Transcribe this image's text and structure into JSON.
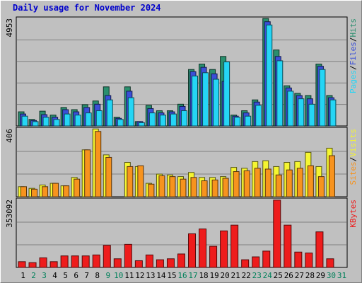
{
  "title": "Daily usage for November 2024",
  "colors": {
    "hits": "#2a8f6e",
    "files": "#3a4fd8",
    "pages": "#25d5f5",
    "visits": "#f5f531",
    "sites": "#f7931e",
    "kbytes": "#ee1c1c",
    "weekend_label": "#00805a",
    "weekday_label": "#000000",
    "bg": "#c0c0c0"
  },
  "chart_data": [
    {
      "type": "bar",
      "panel": "hits_files_pages",
      "ymax_label": "4953",
      "ymax": 4953,
      "legend": [
        {
          "text": "Hits",
          "color_key": "hits"
        },
        {
          "text": "Files",
          "color_key": "files"
        },
        {
          "text": "Pages",
          "color_key": "pages"
        }
      ],
      "categories": [
        "1",
        "2",
        "3",
        "4",
        "5",
        "6",
        "7",
        "8",
        "9",
        "10",
        "11",
        "12",
        "13",
        "14",
        "15",
        "16",
        "17",
        "18",
        "19",
        "20",
        "21",
        "22",
        "23",
        "24",
        "25",
        "26",
        "27",
        "28",
        "29",
        "30",
        "31"
      ],
      "weekend_days": [
        "2",
        "3",
        "9",
        "10",
        "16",
        "17",
        "23",
        "24",
        "30",
        "31"
      ],
      "series": [
        {
          "name": "Hits",
          "color_key": "hits",
          "values": [
            650,
            300,
            680,
            500,
            850,
            750,
            980,
            1150,
            1800,
            400,
            1800,
            200,
            950,
            700,
            700,
            1000,
            2600,
            2850,
            2600,
            3200,
            500,
            700,
            1200,
            4950,
            3500,
            1850,
            1500,
            1400,
            2850,
            1400,
            0
          ]
        },
        {
          "name": "Files",
          "color_key": "files",
          "values": [
            550,
            250,
            520,
            400,
            750,
            650,
            850,
            1000,
            1400,
            350,
            1600,
            200,
            800,
            600,
            650,
            900,
            2500,
            2700,
            2400,
            2050,
            450,
            600,
            1100,
            4800,
            3200,
            1750,
            1400,
            1250,
            2750,
            1300,
            0
          ]
        },
        {
          "name": "Pages",
          "color_key": "pages",
          "values": [
            450,
            200,
            400,
            300,
            550,
            500,
            600,
            700,
            1200,
            300,
            1300,
            150,
            600,
            500,
            550,
            700,
            2300,
            2450,
            2150,
            2950,
            400,
            450,
            950,
            4650,
            3000,
            1600,
            1250,
            1000,
            2600,
            1200,
            0
          ]
        }
      ]
    },
    {
      "type": "bar",
      "panel": "visits_sites",
      "ymax_label": "406",
      "ymax": 406,
      "legend": [
        {
          "text": "Visits",
          "color_key": "visits"
        },
        {
          "text": "Sites",
          "color_key": "sites"
        }
      ],
      "categories": [
        "1",
        "2",
        "3",
        "4",
        "5",
        "6",
        "7",
        "8",
        "9",
        "10",
        "11",
        "12",
        "13",
        "14",
        "15",
        "16",
        "17",
        "18",
        "19",
        "20",
        "21",
        "22",
        "23",
        "24",
        "25",
        "26",
        "27",
        "28",
        "29",
        "30",
        "31"
      ],
      "series": [
        {
          "name": "Visits",
          "color_key": "visits",
          "values": [
            60,
            50,
            70,
            80,
            65,
            115,
            280,
            405,
            250,
            0,
            205,
            180,
            80,
            135,
            130,
            120,
            145,
            115,
            115,
            120,
            175,
            170,
            210,
            215,
            180,
            205,
            210,
            265,
            180,
            290,
            0
          ]
        },
        {
          "name": "Sites",
          "color_key": "sites",
          "values": [
            60,
            45,
            60,
            80,
            65,
            105,
            280,
            390,
            235,
            0,
            180,
            185,
            75,
            125,
            120,
            105,
            115,
            95,
            100,
            110,
            150,
            155,
            170,
            165,
            130,
            160,
            170,
            185,
            120,
            245,
            0
          ]
        }
      ]
    },
    {
      "type": "bar",
      "panel": "kbytes",
      "ymax_label": "353092",
      "ymax": 353092,
      "legend": [
        {
          "text": "KBytes",
          "color_key": "kbytes"
        }
      ],
      "categories": [
        "1",
        "2",
        "3",
        "4",
        "5",
        "6",
        "7",
        "8",
        "9",
        "10",
        "11",
        "12",
        "13",
        "14",
        "15",
        "16",
        "17",
        "18",
        "19",
        "20",
        "21",
        "22",
        "23",
        "24",
        "25",
        "26",
        "27",
        "28",
        "29",
        "30",
        "31"
      ],
      "series": [
        {
          "name": "KBytes",
          "color_key": "kbytes",
          "values": [
            30000,
            25000,
            50000,
            30000,
            60000,
            60000,
            60000,
            65000,
            115000,
            45000,
            120000,
            35000,
            65000,
            40000,
            45000,
            70000,
            175000,
            200000,
            110000,
            190000,
            220000,
            40000,
            55000,
            85000,
            350000,
            220000,
            80000,
            75000,
            185000,
            45000,
            0
          ]
        }
      ]
    }
  ]
}
